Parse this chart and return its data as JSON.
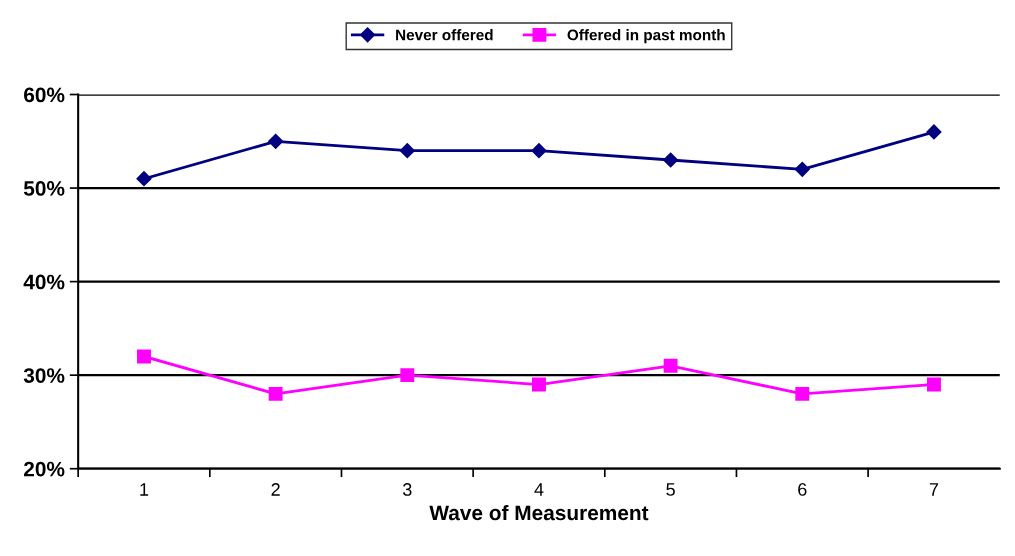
{
  "chart_data": {
    "type": "line",
    "xlabel": "Wave of Measurement",
    "categories": [
      "1",
      "2",
      "3",
      "4",
      "5",
      "6",
      "7"
    ],
    "series": [
      {
        "name": "Never offered",
        "color": "#000080",
        "marker": "diamond",
        "values": [
          51,
          55,
          54,
          54,
          53,
          52,
          56
        ]
      },
      {
        "name": "Offered in past month",
        "color": "#ff00ff",
        "marker": "square",
        "values": [
          32,
          28,
          30,
          29,
          31,
          28,
          29
        ]
      }
    ],
    "ylim": [
      20,
      60
    ],
    "yticks": [
      {
        "value": 20,
        "label": "20%"
      },
      {
        "value": 30,
        "label": "30%"
      },
      {
        "value": 40,
        "label": "40%"
      },
      {
        "value": 50,
        "label": "50%"
      },
      {
        "value": 60,
        "label": "60%"
      }
    ],
    "grid": "y",
    "legend": "top",
    "line_style": "solid"
  }
}
